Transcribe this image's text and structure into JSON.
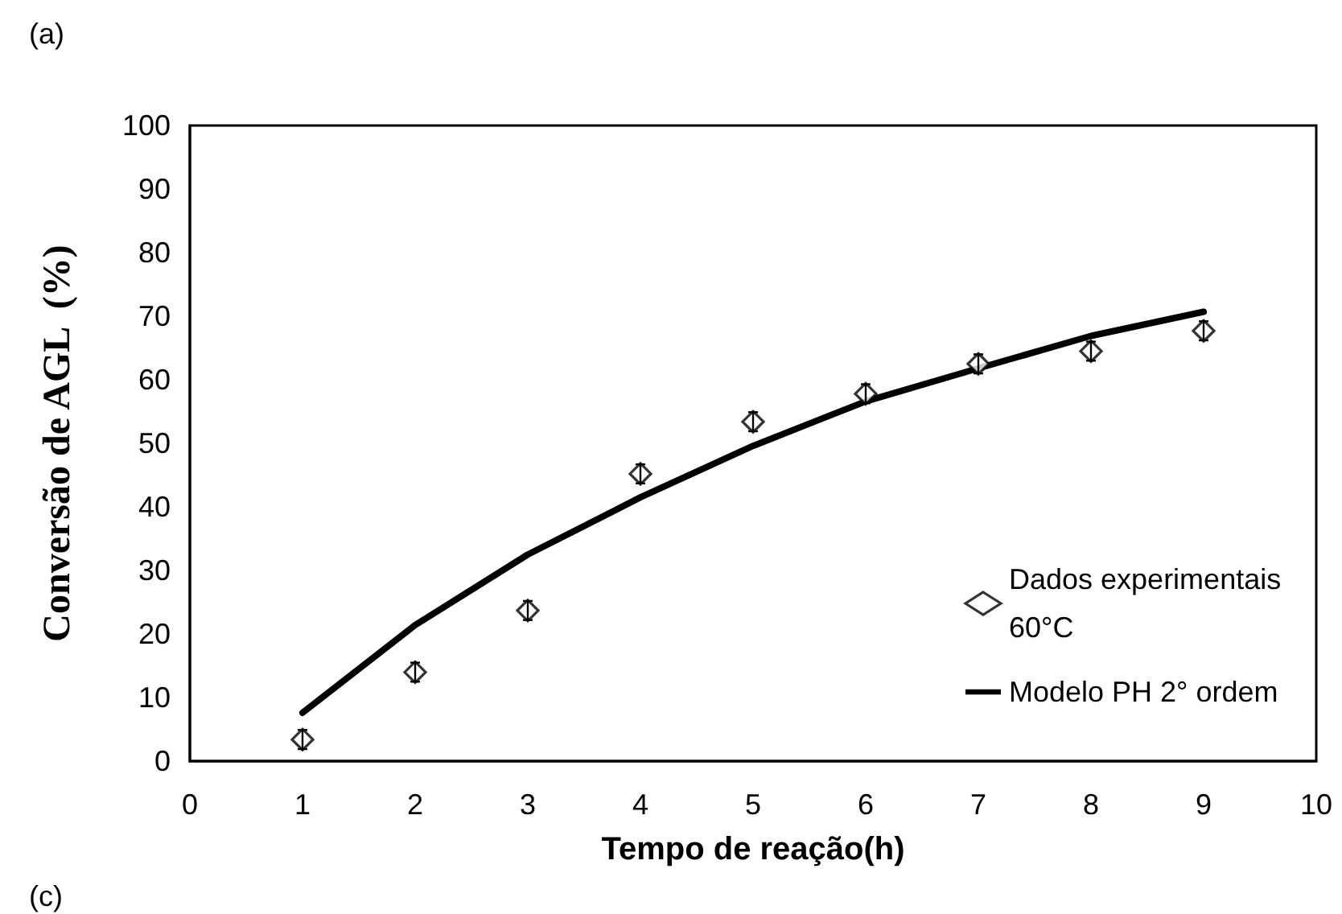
{
  "chart_data": {
    "type": "scatter",
    "xlabel": "Tempo de reação(h)",
    "ylabel": "Conversão de AGL  (%)",
    "annotations": [
      "(a)",
      "(c)"
    ],
    "xlim": [
      0,
      10
    ],
    "xticks": [
      0,
      1,
      2,
      3,
      4,
      5,
      6,
      7,
      8,
      9,
      10
    ],
    "ylim": [
      0,
      100
    ],
    "yticks": [
      0,
      10,
      20,
      30,
      40,
      50,
      60,
      70,
      80,
      90,
      100
    ],
    "grid": false,
    "legend": "bottom right",
    "series": [
      {
        "name": "Dados experimentais 60°C",
        "marker": "diamond",
        "color": "#000000",
        "x": [
          1,
          2,
          3,
          4,
          5,
          6,
          7,
          8,
          9
        ],
        "values": [
          3.4,
          14.0,
          23.7,
          45.2,
          53.4,
          57.8,
          62.5,
          64.5,
          67.7
        ],
        "errors": [
          1.5,
          1.5,
          1.5,
          1.5,
          1.5,
          1.5,
          1.5,
          1.5,
          1.5
        ]
      },
      {
        "name": "Modelo PH 2° ordem",
        "type": "line",
        "marker": "none",
        "line_style": "solid",
        "color": "#000000",
        "x": [
          1,
          2,
          3,
          4,
          5,
          6,
          7,
          8,
          9
        ],
        "values": [
          7.6,
          21.4,
          32.5,
          41.5,
          49.6,
          56.6,
          61.8,
          66.9,
          70.7
        ]
      }
    ]
  }
}
